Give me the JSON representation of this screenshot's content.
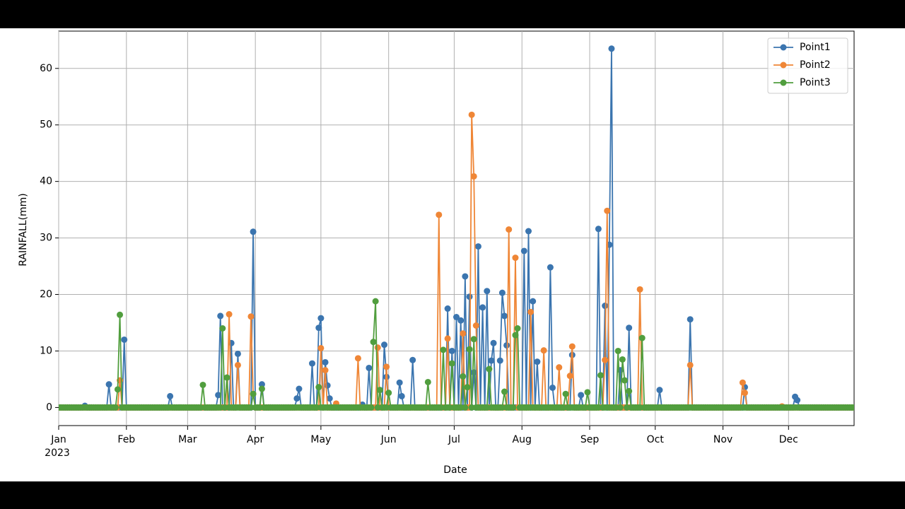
{
  "chart_data": {
    "type": "line",
    "xlabel": "Date",
    "ylabel": "RAINFALL(mm)",
    "x_year_label": "2023",
    "x": [
      0,
      1,
      2,
      3,
      4,
      5,
      6,
      7,
      8,
      9,
      10,
      11,
      12,
      13,
      14,
      15,
      16,
      17,
      18,
      19,
      20,
      21,
      22,
      23,
      24,
      25,
      26,
      27,
      28,
      29,
      30,
      31,
      32,
      33,
      34,
      35,
      36,
      37,
      38,
      39,
      40,
      41,
      42,
      43,
      44,
      45,
      46,
      47,
      48,
      49,
      50,
      51,
      52,
      53,
      54,
      55,
      56,
      57,
      58,
      59,
      60,
      61,
      62,
      63,
      64,
      65,
      66,
      67,
      68,
      69,
      70,
      71,
      72,
      73,
      74,
      75,
      76,
      77,
      78,
      79,
      80,
      81,
      82,
      83,
      84,
      85,
      86,
      87,
      88,
      89,
      90,
      91,
      92,
      93,
      94,
      95,
      96,
      97,
      98,
      99,
      100,
      101,
      102,
      103,
      104,
      105,
      106,
      107,
      108,
      109,
      110,
      111,
      112,
      113,
      114,
      115,
      116,
      117,
      118,
      119,
      120,
      121,
      122,
      123,
      124,
      125,
      126,
      127,
      128,
      129,
      130,
      131,
      132,
      133,
      134,
      135,
      136,
      137,
      138,
      139,
      140,
      141,
      142,
      143,
      144,
      145,
      146,
      147,
      148,
      149,
      150,
      151,
      152,
      153,
      154,
      155,
      156,
      157,
      158,
      159,
      160,
      161,
      162,
      163,
      164,
      165,
      166,
      167,
      168,
      169,
      170,
      171,
      172,
      173,
      174,
      175,
      176,
      177,
      178,
      179,
      180,
      181,
      182,
      183,
      184,
      185,
      186,
      187,
      188,
      189,
      190,
      191,
      192,
      193,
      194,
      195,
      196,
      197,
      198,
      199,
      200,
      201,
      202,
      203,
      204,
      205,
      206,
      207,
      208,
      209,
      210,
      211,
      212,
      213,
      214,
      215,
      216,
      217,
      218,
      219,
      220,
      221,
      222,
      223,
      224,
      225,
      226,
      227,
      228,
      229,
      230,
      231,
      232,
      233,
      234,
      235,
      236,
      237,
      238,
      239,
      240,
      241,
      242,
      243,
      244,
      245,
      246,
      247,
      248,
      249,
      250,
      251,
      252,
      253,
      254,
      255,
      256,
      257,
      258,
      259,
      260,
      261,
      262,
      263,
      264,
      265,
      266,
      267,
      268,
      269,
      270,
      271,
      272,
      273,
      274,
      275,
      276,
      277,
      278,
      279,
      280,
      281,
      282,
      283,
      284,
      285,
      286,
      287,
      288,
      289,
      290,
      291,
      292,
      293,
      294,
      295,
      296,
      297,
      298,
      299,
      300,
      301,
      302,
      303,
      304,
      305,
      306,
      307,
      308,
      309,
      310,
      311,
      312,
      313,
      314,
      315,
      316,
      317,
      318,
      319,
      320,
      321,
      322,
      323,
      324,
      325,
      326,
      327,
      328,
      329,
      330,
      331,
      332,
      333,
      334,
      335,
      336,
      337,
      338,
      339,
      340,
      341,
      342,
      343,
      344,
      345,
      346,
      347,
      348,
      349,
      350,
      351,
      352,
      353,
      354,
      355,
      356,
      357,
      358,
      359,
      360,
      361,
      362,
      363,
      364
    ],
    "series": [
      {
        "name": "Point1",
        "color": "#3b75af",
        "values": [
          0,
          0,
          0,
          0,
          0,
          0,
          0,
          0,
          0,
          0,
          0,
          0,
          0.3,
          0,
          0,
          0,
          0,
          0,
          0,
          0,
          0,
          0,
          0,
          4.1,
          0,
          0,
          0,
          0,
          0,
          0,
          12,
          0,
          0,
          0,
          0,
          0,
          0,
          0,
          0,
          0,
          0,
          0,
          0,
          0,
          0,
          0,
          0,
          0,
          0,
          0,
          0,
          2,
          0,
          0,
          0,
          0,
          0,
          0,
          0,
          0,
          0,
          0,
          0,
          0,
          0,
          0,
          0,
          0,
          0,
          0,
          0,
          0,
          0,
          2.2,
          16.2,
          0,
          0,
          0,
          0,
          11.4,
          0,
          0,
          9.5,
          0,
          0,
          0,
          0,
          0,
          0,
          31.1,
          0,
          0,
          0,
          4.1,
          0,
          0,
          0,
          0,
          0,
          0,
          0,
          0,
          0,
          0,
          0,
          0,
          0,
          0,
          0,
          1.6,
          3.3,
          0,
          0,
          0,
          0,
          0,
          7.8,
          0,
          0,
          14.1,
          15.8,
          0,
          8,
          3.9,
          1.6,
          0,
          0,
          0,
          0,
          0,
          0,
          0,
          0,
          0,
          0,
          0,
          0,
          0,
          0,
          0.5,
          0,
          0,
          7,
          0,
          0,
          0,
          0,
          0,
          0,
          11.1,
          5.4,
          0,
          0,
          0,
          0,
          0,
          4.4,
          2,
          0,
          0,
          0,
          0,
          8.4,
          0,
          0,
          0,
          0,
          0,
          0,
          0,
          0,
          0,
          0,
          0,
          0,
          0,
          0,
          0,
          17.5,
          0,
          10,
          0,
          16,
          0,
          15.4,
          0,
          23.2,
          0,
          19.6,
          0,
          6.2,
          0,
          28.5,
          0,
          17.7,
          0,
          20.6,
          0,
          8.3,
          11.4,
          0,
          0,
          8.3,
          20.3,
          16.2,
          11,
          0,
          0,
          0,
          0,
          0,
          0,
          0,
          27.7,
          0,
          31.2,
          0,
          18.8,
          0,
          8.1,
          0,
          0,
          0,
          0,
          0,
          24.8,
          3.5,
          0,
          0,
          0,
          0,
          0,
          0,
          0,
          0,
          9.3,
          0,
          0,
          0,
          2.2,
          0,
          0,
          0,
          0,
          0,
          0,
          0,
          31.6,
          0,
          0,
          18,
          0,
          28.8,
          63.5,
          0,
          0,
          0,
          6.6,
          0,
          0,
          0,
          14.1,
          0,
          0,
          0,
          0,
          0,
          0,
          0,
          0,
          0,
          0,
          0,
          0,
          0,
          3.1,
          0,
          0,
          0,
          0,
          0,
          0,
          0,
          0,
          0,
          0,
          0,
          0,
          0,
          15.6,
          0,
          0,
          0,
          0,
          0,
          0,
          0,
          0,
          0,
          0,
          0,
          0,
          0,
          0,
          0,
          0,
          0,
          0,
          0,
          0,
          0,
          0,
          0,
          0,
          3.6,
          0,
          0,
          0,
          0,
          0,
          0,
          0,
          0,
          0,
          0,
          0,
          0,
          0,
          0,
          0,
          0,
          0,
          0,
          0,
          0,
          0,
          0,
          1.9,
          1.3,
          0,
          0,
          0,
          0,
          0,
          0,
          0,
          0,
          0,
          0,
          0,
          0,
          0,
          0,
          0,
          0,
          0,
          0,
          0,
          0,
          0,
          0,
          0,
          0,
          0,
          0
        ]
      },
      {
        "name": "Point2",
        "color": "#ef8636",
        "values": [
          0,
          0,
          0,
          0,
          0,
          0,
          0,
          0,
          0,
          0,
          0,
          0,
          0,
          0,
          0,
          0,
          0,
          0,
          0,
          0,
          0,
          0,
          0,
          0,
          0,
          0,
          0,
          0,
          4.8,
          0,
          0,
          0,
          0,
          0,
          0,
          0,
          0,
          0,
          0,
          0,
          0,
          0,
          0,
          0,
          0,
          0,
          0,
          0,
          0,
          0,
          0,
          0,
          0,
          0,
          0,
          0,
          0,
          0,
          0,
          0,
          0,
          0,
          0,
          0,
          0,
          0,
          0,
          0,
          0,
          0,
          0,
          0,
          0,
          0,
          0,
          0,
          0,
          0,
          16.5,
          0,
          0,
          0,
          7.5,
          0,
          0,
          0,
          0,
          0,
          16.1,
          2.4,
          0,
          0,
          0,
          0,
          0,
          0,
          0,
          0,
          0,
          0,
          0,
          0,
          0,
          0,
          0,
          0,
          0,
          0,
          0,
          0,
          0,
          0,
          0,
          0,
          0,
          0,
          0,
          0,
          0,
          0,
          10.5,
          0,
          6.6,
          0,
          0,
          0,
          0,
          0.7,
          0,
          0,
          0,
          0,
          0,
          0,
          0,
          0,
          0,
          8.7,
          0,
          0,
          0,
          0,
          0,
          0,
          0,
          0,
          10.6,
          0,
          0,
          0,
          7.2,
          0,
          0,
          0,
          0,
          0,
          0,
          0,
          0,
          0,
          0,
          0,
          0,
          0,
          0,
          0,
          0,
          0,
          0,
          0,
          0,
          0,
          0,
          0,
          34.1,
          0,
          0,
          0,
          12.2,
          0,
          0,
          0,
          0,
          0,
          0,
          13.1,
          0,
          0,
          0,
          51.8,
          40.9,
          14.5,
          0,
          0,
          0,
          0,
          0,
          0,
          0,
          0,
          0,
          0,
          0,
          0,
          0,
          0,
          31.5,
          0,
          0,
          26.5,
          0,
          0,
          0,
          0,
          0,
          0,
          16.9,
          0,
          0,
          0,
          0,
          0,
          10.1,
          0,
          0,
          0,
          0,
          0,
          0,
          7.1,
          0,
          0,
          0,
          0,
          5.6,
          10.8,
          0,
          0,
          0,
          0,
          0,
          0,
          0,
          0,
          0,
          0,
          0,
          0,
          0,
          0,
          8.4,
          34.8,
          0,
          0,
          0,
          0,
          0,
          0,
          0,
          0,
          0,
          0,
          0,
          0,
          0,
          0,
          20.9,
          0,
          0,
          0,
          0,
          0,
          0,
          0,
          0,
          0,
          0,
          0,
          0,
          0,
          0,
          0,
          0,
          0,
          0,
          0,
          0,
          0,
          0,
          7.5,
          0,
          0,
          0,
          0,
          0,
          0,
          0,
          0,
          0,
          0,
          0,
          0,
          0,
          0,
          0,
          0,
          0,
          0,
          0,
          0,
          0,
          0,
          0,
          4.4,
          2.6,
          0,
          0,
          0,
          0,
          0,
          0,
          0,
          0,
          0,
          0,
          0,
          0,
          0,
          0,
          0,
          0,
          0.2,
          0,
          0,
          0,
          0,
          0,
          0,
          0,
          0,
          0,
          0,
          0,
          0,
          0,
          0,
          0,
          0,
          0,
          0,
          0,
          0,
          0,
          0,
          0,
          0,
          0,
          0,
          0,
          0,
          0,
          0,
          0,
          0,
          0
        ]
      },
      {
        "name": "Point3",
        "color": "#519e3e",
        "values": [
          0,
          0,
          0,
          0,
          0,
          0,
          0,
          0,
          0,
          0,
          0,
          0,
          0,
          0,
          0,
          0,
          0,
          0,
          0,
          0,
          0,
          0,
          0,
          0,
          0,
          0,
          0,
          3.2,
          16.4,
          0,
          0,
          0,
          0,
          0,
          0,
          0,
          0,
          0,
          0,
          0,
          0,
          0,
          0,
          0,
          0,
          0,
          0,
          0,
          0,
          0,
          0,
          0,
          0,
          0,
          0,
          0,
          0,
          0,
          0,
          0,
          0,
          0,
          0,
          0,
          0,
          0,
          4,
          0,
          0,
          0,
          0,
          0,
          0,
          0,
          0,
          14,
          0,
          5.3,
          0,
          0,
          0,
          0,
          0,
          0,
          0,
          0,
          0,
          0,
          0,
          2.4,
          0,
          0,
          0,
          3.3,
          0,
          0,
          0,
          0,
          0,
          0,
          0,
          0,
          0,
          0,
          0,
          0,
          0,
          0,
          0,
          0,
          0,
          0,
          0,
          0,
          0,
          0,
          0,
          0,
          0,
          3.6,
          0,
          0,
          0,
          0,
          0,
          0,
          0,
          0,
          0,
          0,
          0,
          0,
          0,
          0,
          0,
          0,
          0,
          0,
          0,
          0,
          0,
          0,
          0,
          0,
          11.6,
          18.8,
          0,
          3.1,
          0,
          0,
          0,
          2.6,
          0,
          0,
          0,
          0,
          0,
          0,
          0,
          0,
          0,
          0,
          0,
          0,
          0,
          0,
          0,
          0,
          0,
          4.5,
          0,
          0,
          0,
          0,
          0,
          0,
          10.2,
          0,
          0,
          0,
          7.8,
          0,
          0,
          0,
          0,
          5.5,
          0,
          3.6,
          10.3,
          0,
          12.1,
          0,
          0,
          0,
          0,
          0,
          0,
          6.8,
          0,
          0,
          0,
          0,
          0,
          0,
          2.8,
          0,
          0,
          0,
          0,
          12.8,
          14,
          0,
          0,
          0,
          0,
          0,
          0,
          0,
          0,
          0,
          0,
          0,
          0,
          0,
          0,
          0,
          0,
          0,
          0,
          0,
          0,
          0,
          2.4,
          0,
          0,
          0,
          0,
          0,
          0,
          0,
          0,
          0,
          2.7,
          0,
          0,
          0,
          0,
          0,
          5.7,
          0,
          0,
          0,
          0,
          0,
          0,
          0,
          10,
          0,
          8.5,
          4.8,
          0,
          2.9,
          0,
          0,
          0,
          0,
          0,
          12.3,
          0,
          0,
          0,
          0,
          0,
          0,
          0,
          0,
          0,
          0,
          0,
          0,
          0,
          0,
          0,
          0,
          0,
          0,
          0,
          0,
          0,
          0,
          0,
          0,
          0,
          0,
          0,
          0,
          0,
          0,
          0,
          0,
          0,
          0,
          0,
          0,
          0,
          0,
          0,
          0,
          0,
          0,
          0,
          0,
          0,
          0,
          0,
          0,
          0,
          0,
          0,
          0,
          0,
          0,
          0,
          0,
          0,
          0,
          0,
          0,
          0,
          0,
          0,
          0,
          0,
          0,
          0,
          0,
          0,
          0,
          0,
          0,
          0,
          0,
          0,
          0,
          0,
          0,
          0,
          0,
          0,
          0,
          0,
          0,
          0,
          0,
          0,
          0,
          0,
          0,
          0,
          0,
          0,
          0,
          0,
          0,
          0
        ]
      }
    ],
    "xlim": [
      0,
      364
    ],
    "xticks": [
      {
        "value": 0,
        "label": "Jan"
      },
      {
        "value": 31,
        "label": "Feb"
      },
      {
        "value": 59,
        "label": "Mar"
      },
      {
        "value": 90,
        "label": "Apr"
      },
      {
        "value": 120,
        "label": "May"
      },
      {
        "value": 151,
        "label": "Jun"
      },
      {
        "value": 181,
        "label": "Jul"
      },
      {
        "value": 212,
        "label": "Aug"
      },
      {
        "value": 243,
        "label": "Sep"
      },
      {
        "value": 273,
        "label": "Oct"
      },
      {
        "value": 304,
        "label": "Nov"
      },
      {
        "value": 334,
        "label": "Dec"
      }
    ],
    "ylim": [
      -3.2,
      66.6
    ],
    "yticks": [
      0,
      10,
      20,
      30,
      40,
      50,
      60
    ],
    "grid": true,
    "legend": "upper right"
  }
}
